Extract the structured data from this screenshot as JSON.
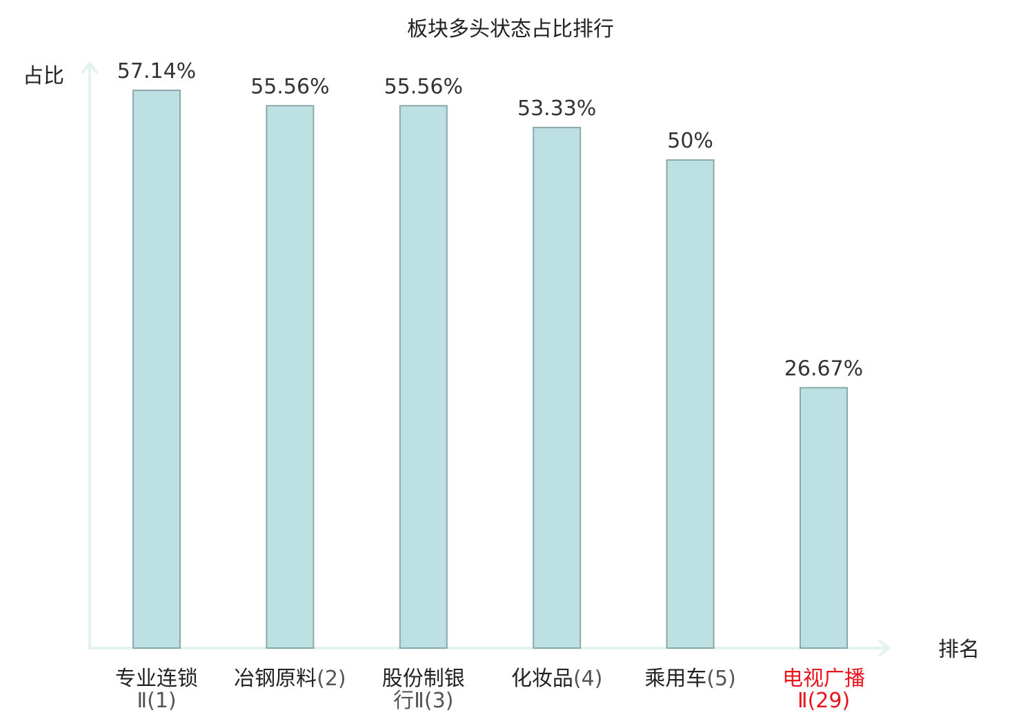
{
  "chart_data": {
    "type": "bar",
    "title": "板块多头状态占比排行",
    "ylabel": "占比",
    "xlabel": "排名",
    "ylim": [
      0,
      60
    ],
    "grid": false,
    "categories": [
      {
        "name": "专业连锁",
        "rank": "Ⅱ(1)",
        "highlight": false
      },
      {
        "name": "冶钢原料",
        "rank": "(2)",
        "highlight": false
      },
      {
        "name": "股份制银",
        "rank": "行Ⅱ(3)",
        "highlight": false
      },
      {
        "name": "化妆品",
        "rank": "(4)",
        "highlight": false
      },
      {
        "name": "乘用车",
        "rank": "(5)",
        "highlight": false
      },
      {
        "name": "电视广播",
        "rank": "Ⅱ(29)",
        "highlight": true
      }
    ],
    "values": [
      57.14,
      55.56,
      55.56,
      53.33,
      50,
      26.67
    ],
    "value_labels": [
      "57.14%",
      "55.56%",
      "55.56%",
      "53.33%",
      "50%",
      "26.67%"
    ]
  },
  "colors": {
    "bar_fill": "#bde0e3",
    "bar_stroke": "#8aa8aa",
    "axis": "#e2f3ef",
    "highlight": "#e8141e",
    "text": "#222222"
  }
}
